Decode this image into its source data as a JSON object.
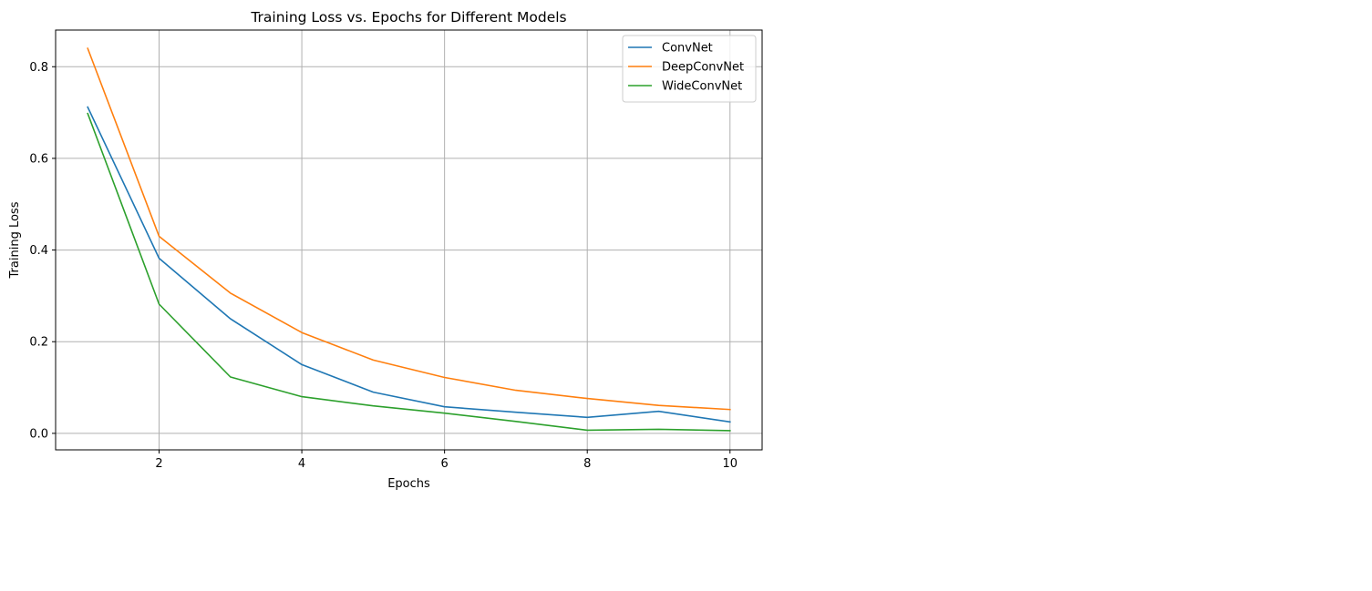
{
  "chart_data": {
    "type": "line",
    "title": "Training Loss vs. Epochs for Different Models",
    "xlabel": "Epochs",
    "ylabel": "Training Loss",
    "x": [
      1,
      2,
      3,
      4,
      5,
      6,
      7,
      8,
      9,
      10
    ],
    "xlim": [
      0.55,
      10.45
    ],
    "ylim": [
      -0.036,
      0.88
    ],
    "xticks": [
      2,
      4,
      6,
      8,
      10
    ],
    "yticks": [
      0.0,
      0.2,
      0.4,
      0.6,
      0.8
    ],
    "xtick_labels": [
      "2",
      "4",
      "6",
      "8",
      "10"
    ],
    "ytick_labels": [
      "0.0",
      "0.2",
      "0.4",
      "0.6",
      "0.8"
    ],
    "grid": true,
    "legend_position": "top-right",
    "series": [
      {
        "name": "ConvNet",
        "color": "#1f77b4",
        "values": [
          0.712,
          0.382,
          0.25,
          0.15,
          0.09,
          0.058,
          0.046,
          0.035,
          0.048,
          0.025
        ]
      },
      {
        "name": "DeepConvNet",
        "color": "#ff7f0e",
        "values": [
          0.84,
          0.43,
          0.306,
          0.22,
          0.16,
          0.122,
          0.094,
          0.076,
          0.061,
          0.052
        ]
      },
      {
        "name": "WideConvNet",
        "color": "#2ca02c",
        "values": [
          0.698,
          0.282,
          0.123,
          0.08,
          0.06,
          0.044,
          0.026,
          0.007,
          0.009,
          0.006
        ]
      }
    ]
  }
}
